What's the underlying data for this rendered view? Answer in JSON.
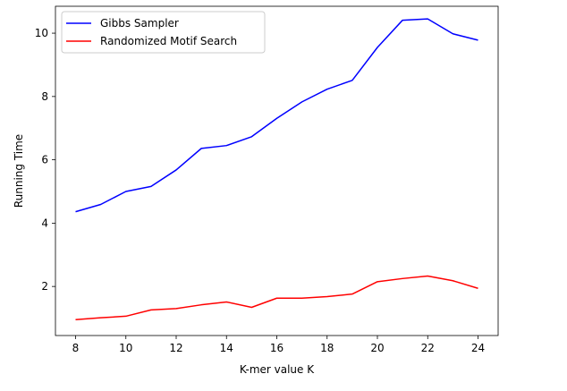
{
  "chart_data": {
    "type": "line",
    "title": "",
    "xlabel": "K-mer value K",
    "ylabel": "Running Time",
    "x": [
      8,
      9,
      10,
      11,
      12,
      13,
      14,
      15,
      16,
      17,
      18,
      19,
      20,
      21,
      22,
      23,
      24
    ],
    "xlim": [
      7.2,
      24.8
    ],
    "ylim": [
      0.45,
      10.85
    ],
    "xticks": [
      8,
      10,
      12,
      14,
      16,
      18,
      20,
      22,
      24
    ],
    "yticks": [
      2,
      4,
      6,
      8,
      10
    ],
    "grid": false,
    "legend_position": "top-left",
    "series": [
      {
        "name": "Gibbs Sampler",
        "color": "#0000ff",
        "values": [
          4.36,
          4.59,
          5.0,
          5.16,
          5.68,
          6.36,
          6.45,
          6.73,
          7.31,
          7.83,
          8.23,
          8.51,
          9.55,
          10.41,
          10.45,
          9.98,
          9.78
        ]
      },
      {
        "name": "Randomized Motif Search",
        "color": "#ff0000",
        "values": [
          0.95,
          1.01,
          1.06,
          1.26,
          1.3,
          1.42,
          1.51,
          1.34,
          1.63,
          1.63,
          1.68,
          1.76,
          2.15,
          2.25,
          2.33,
          2.18,
          1.94
        ]
      }
    ]
  }
}
